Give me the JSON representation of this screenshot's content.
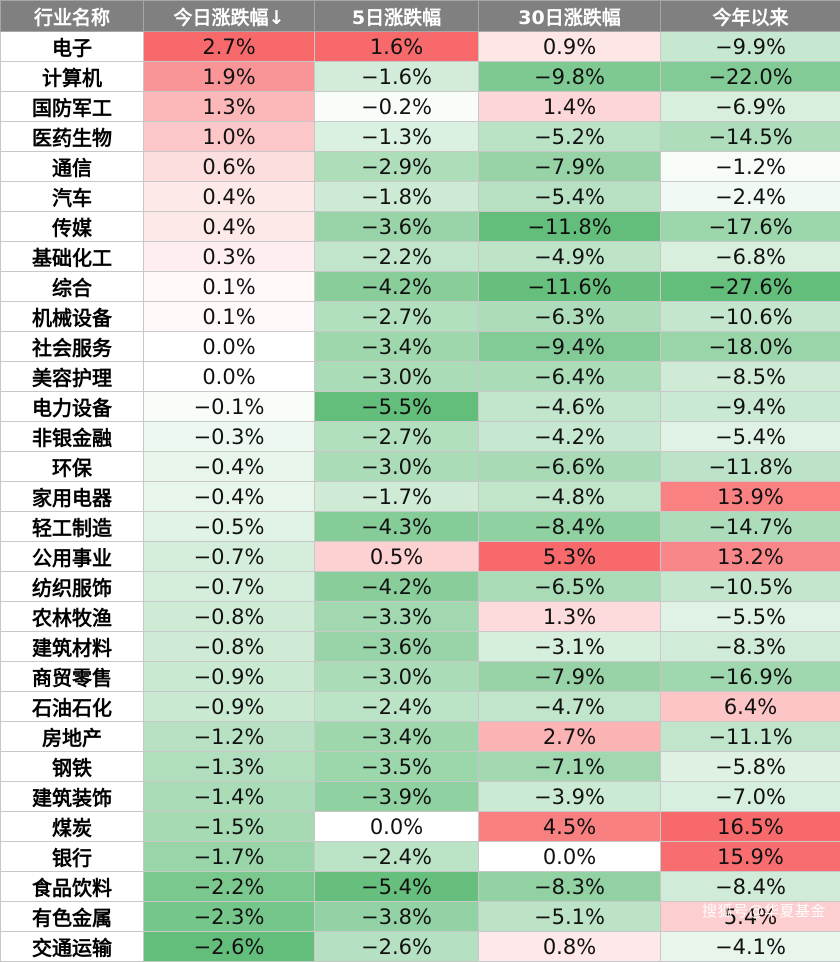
{
  "table": {
    "headers": [
      "行业名称",
      "今日涨跌幅↓",
      "5日涨跌幅",
      "30日涨跌幅",
      "今年以来"
    ],
    "rows": [
      [
        "电子",
        "2.7%",
        "1.6%",
        "0.9%",
        "−9.9%"
      ],
      [
        "计算机",
        "1.9%",
        "−1.6%",
        "−9.8%",
        "−22.0%"
      ],
      [
        "国防军工",
        "1.3%",
        "−0.2%",
        "1.4%",
        "−6.9%"
      ],
      [
        "医药生物",
        "1.0%",
        "−1.3%",
        "−5.2%",
        "−14.5%"
      ],
      [
        "通信",
        "0.6%",
        "−2.9%",
        "−7.9%",
        "−1.2%"
      ],
      [
        "汽车",
        "0.4%",
        "−1.8%",
        "−5.4%",
        "−2.4%"
      ],
      [
        "传媒",
        "0.4%",
        "−3.6%",
        "−11.8%",
        "−17.6%"
      ],
      [
        "基础化工",
        "0.3%",
        "−2.2%",
        "−4.9%",
        "−6.8%"
      ],
      [
        "综合",
        "0.1%",
        "−4.2%",
        "−11.6%",
        "−27.6%"
      ],
      [
        "机械设备",
        "0.1%",
        "−2.7%",
        "−6.3%",
        "−10.6%"
      ],
      [
        "社会服务",
        "0.0%",
        "−3.4%",
        "−9.4%",
        "−18.0%"
      ],
      [
        "美容护理",
        "0.0%",
        "−3.0%",
        "−6.4%",
        "−8.5%"
      ],
      [
        "电力设备",
        "−0.1%",
        "−5.5%",
        "−4.6%",
        "−9.4%"
      ],
      [
        "非银金融",
        "−0.3%",
        "−2.7%",
        "−4.2%",
        "−5.4%"
      ],
      [
        "环保",
        "−0.4%",
        "−3.0%",
        "−6.6%",
        "−11.8%"
      ],
      [
        "家用电器",
        "−0.4%",
        "−1.7%",
        "−4.8%",
        "13.9%"
      ],
      [
        "轻工制造",
        "−0.5%",
        "−4.3%",
        "−8.4%",
        "−14.7%"
      ],
      [
        "公用事业",
        "−0.7%",
        "0.5%",
        "5.3%",
        "13.2%"
      ],
      [
        "纺织服饰",
        "−0.7%",
        "−4.2%",
        "−6.5%",
        "−10.5%"
      ],
      [
        "农林牧渔",
        "−0.8%",
        "−3.3%",
        "1.3%",
        "−5.5%"
      ],
      [
        "建筑材料",
        "−0.8%",
        "−3.6%",
        "−3.1%",
        "−8.3%"
      ],
      [
        "商贸零售",
        "−0.9%",
        "−3.0%",
        "−7.9%",
        "−16.9%"
      ],
      [
        "石油石化",
        "−0.9%",
        "−2.4%",
        "−4.7%",
        "6.4%"
      ],
      [
        "房地产",
        "−1.2%",
        "−3.4%",
        "2.7%",
        "−11.1%"
      ],
      [
        "钢铁",
        "−1.3%",
        "−3.5%",
        "−7.1%",
        "−5.8%"
      ],
      [
        "建筑装饰",
        "−1.4%",
        "−3.9%",
        "−3.9%",
        "−7.0%"
      ],
      [
        "煤炭",
        "−1.5%",
        "0.0%",
        "4.5%",
        "16.5%"
      ],
      [
        "银行",
        "−1.7%",
        "−2.4%",
        "0.0%",
        "15.9%"
      ],
      [
        "食品饮料",
        "−2.2%",
        "−5.4%",
        "−8.3%",
        "−8.4%"
      ],
      [
        "有色金属",
        "−2.3%",
        "−3.8%",
        "−5.1%",
        "5.4%"
      ],
      [
        "交通运输",
        "−2.6%",
        "−2.6%",
        "0.8%",
        "−4.1%"
      ]
    ]
  },
  "colors": {
    "header_bg": "#808080",
    "positive": "#f8696b",
    "negative": "#63be7b",
    "neutral": "#ffffff"
  },
  "watermark": "搜狐号@华夏基金"
}
